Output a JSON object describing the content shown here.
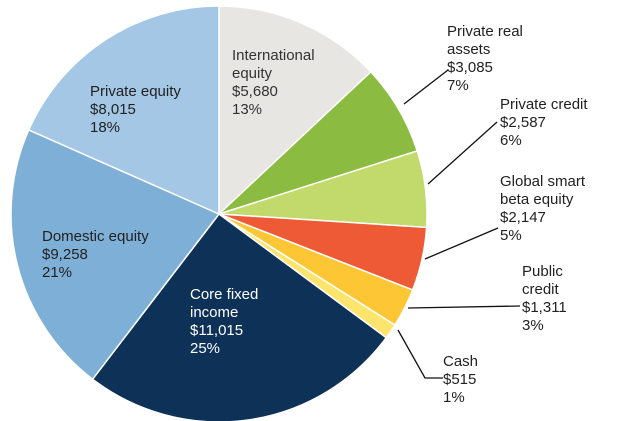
{
  "chart_data": {
    "type": "pie",
    "categories": [
      "International equity",
      "Private real assets",
      "Private credit",
      "Global smart beta equity",
      "Public credit",
      "Cash",
      "Core fixed income",
      "Domestic equity",
      "Private equity"
    ],
    "values": [
      5680,
      3085,
      2587,
      2147,
      1311,
      515,
      11015,
      9258,
      8015
    ],
    "value_labels": [
      "$5,680",
      "$3,085",
      "$2,587",
      "$2,147",
      "$1,311",
      "$515",
      "$11,015",
      "$9,258",
      "$8,015"
    ],
    "shares": [
      13,
      7,
      6,
      5,
      3,
      1,
      25,
      21,
      18
    ],
    "share_labels": [
      "13%",
      "7%",
      "6%",
      "5%",
      "3%",
      "1%",
      "25%",
      "21%",
      "18%"
    ],
    "colors": [
      "#e8e6e2",
      "#8bbb40",
      "#c2da6b",
      "#ee5a36",
      "#fcc634",
      "#fde46c",
      "#0e3158",
      "#7eafd6",
      "#a3c7e4"
    ]
  }
}
